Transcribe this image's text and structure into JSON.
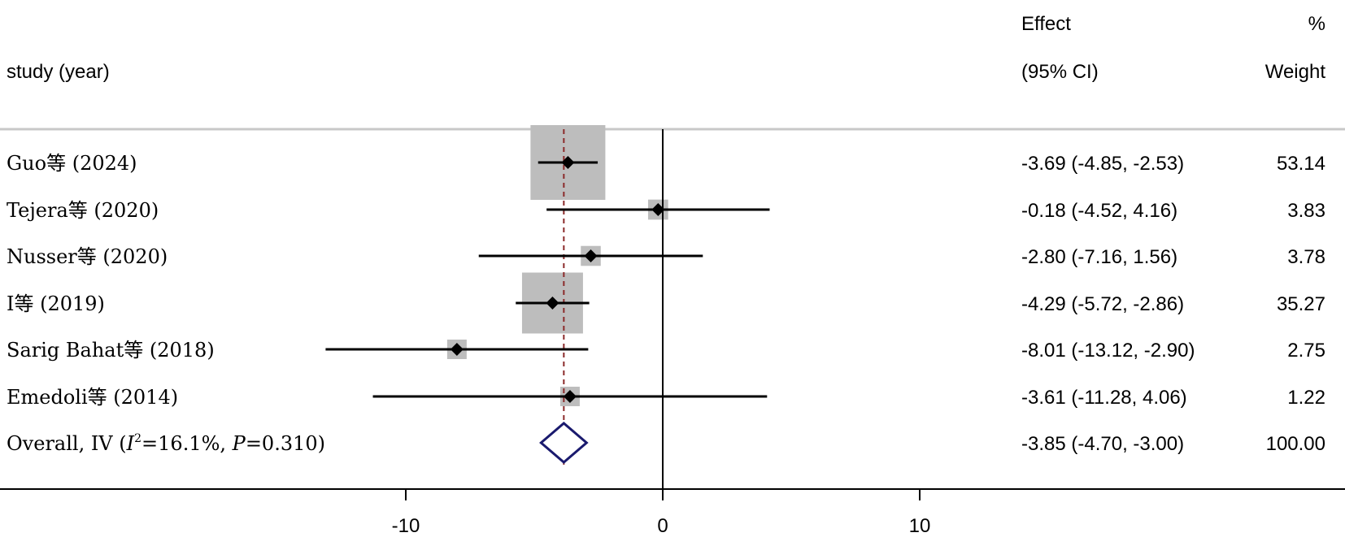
{
  "header": {
    "study_label": "study (year)",
    "effect_label_1": "Effect",
    "effect_label_2": "(95% CI)",
    "weight_label_1": "%",
    "weight_label_2": "Weight"
  },
  "chart_data": {
    "type": "forest",
    "studies": [
      {
        "label": "Guo等 (2024)",
        "effect": -3.69,
        "ci_low": -4.85,
        "ci_high": -2.53,
        "ci_text": "-3.69 (-4.85, -2.53)",
        "weight": 53.14,
        "weight_text": "53.14"
      },
      {
        "label": "Tejera等 (2020)",
        "effect": -0.18,
        "ci_low": -4.52,
        "ci_high": 4.16,
        "ci_text": "-0.18 (-4.52, 4.16)",
        "weight": 3.83,
        "weight_text": "3.83"
      },
      {
        "label": "Nusser等 (2020)",
        "effect": -2.8,
        "ci_low": -7.16,
        "ci_high": 1.56,
        "ci_text": "-2.80 (-7.16, 1.56)",
        "weight": 3.78,
        "weight_text": "3.78"
      },
      {
        "label": "I等 (2019)",
        "effect": -4.29,
        "ci_low": -5.72,
        "ci_high": -2.86,
        "ci_text": "-4.29 (-5.72, -2.86)",
        "weight": 35.27,
        "weight_text": "35.27"
      },
      {
        "label": "Sarig Bahat等 (2018)",
        "effect": -8.01,
        "ci_low": -13.12,
        "ci_high": -2.9,
        "ci_text": "-8.01 (-13.12, -2.90)",
        "weight": 2.75,
        "weight_text": "2.75"
      },
      {
        "label": "Emedoli等 (2014)",
        "effect": -3.61,
        "ci_low": -11.28,
        "ci_high": 4.06,
        "ci_text": "-3.61 (-11.28, 4.06)",
        "weight": 1.22,
        "weight_text": "1.22"
      }
    ],
    "overall": {
      "label_prefix": "Overall, IV (",
      "i2_symbol": "I",
      "i2_sup": "2",
      "i2_value": "=16.1%, ",
      "p_symbol": "P",
      "p_value": "=0.310)",
      "effect": -3.85,
      "ci_low": -4.7,
      "ci_high": -3.0,
      "ci_text": "-3.85 (-4.70, -3.00)",
      "weight_text": "100.00"
    },
    "xlim": [
      -20,
      20
    ],
    "x_ticks": [
      -10,
      0,
      10
    ],
    "null_line": 0,
    "colors": {
      "box": "#bdbdbd",
      "ci_line": "#000000",
      "point": "#000000",
      "overall_diamond": "#1a1a6e",
      "overall_line": "#8b2a2a"
    }
  }
}
